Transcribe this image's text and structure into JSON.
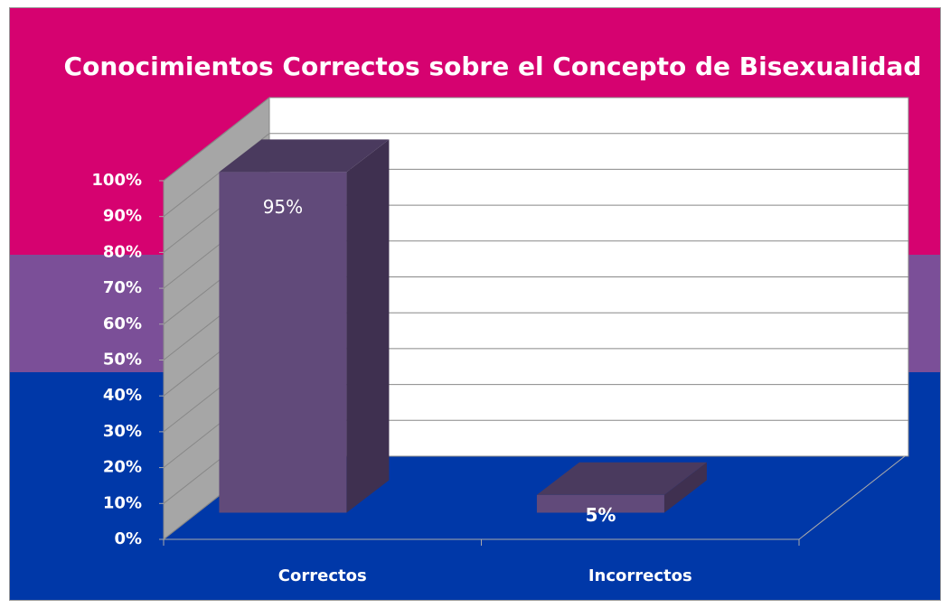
{
  "chart_data": {
    "type": "bar3d",
    "title": "Conocimientos Correctos sobre el Concepto de Bisexualidad",
    "categories": [
      "Correctos",
      "Incorrectos"
    ],
    "values": [
      95,
      5
    ],
    "value_labels": [
      "95%",
      "5%"
    ],
    "color": "#614a7a",
    "ylim": [
      0,
      100
    ],
    "yticks": [
      {
        "value": 0,
        "label": "0%"
      },
      {
        "value": 10,
        "label": "10%"
      },
      {
        "value": 20,
        "label": "20%"
      },
      {
        "value": 30,
        "label": "30%"
      },
      {
        "value": 40,
        "label": "40%"
      },
      {
        "value": 50,
        "label": "50%"
      },
      {
        "value": 60,
        "label": "60%"
      },
      {
        "value": 70,
        "label": "70%"
      },
      {
        "value": 80,
        "label": "80%"
      },
      {
        "value": 90,
        "label": "90%"
      },
      {
        "value": 100,
        "label": "100%"
      }
    ],
    "grid": true
  }
}
